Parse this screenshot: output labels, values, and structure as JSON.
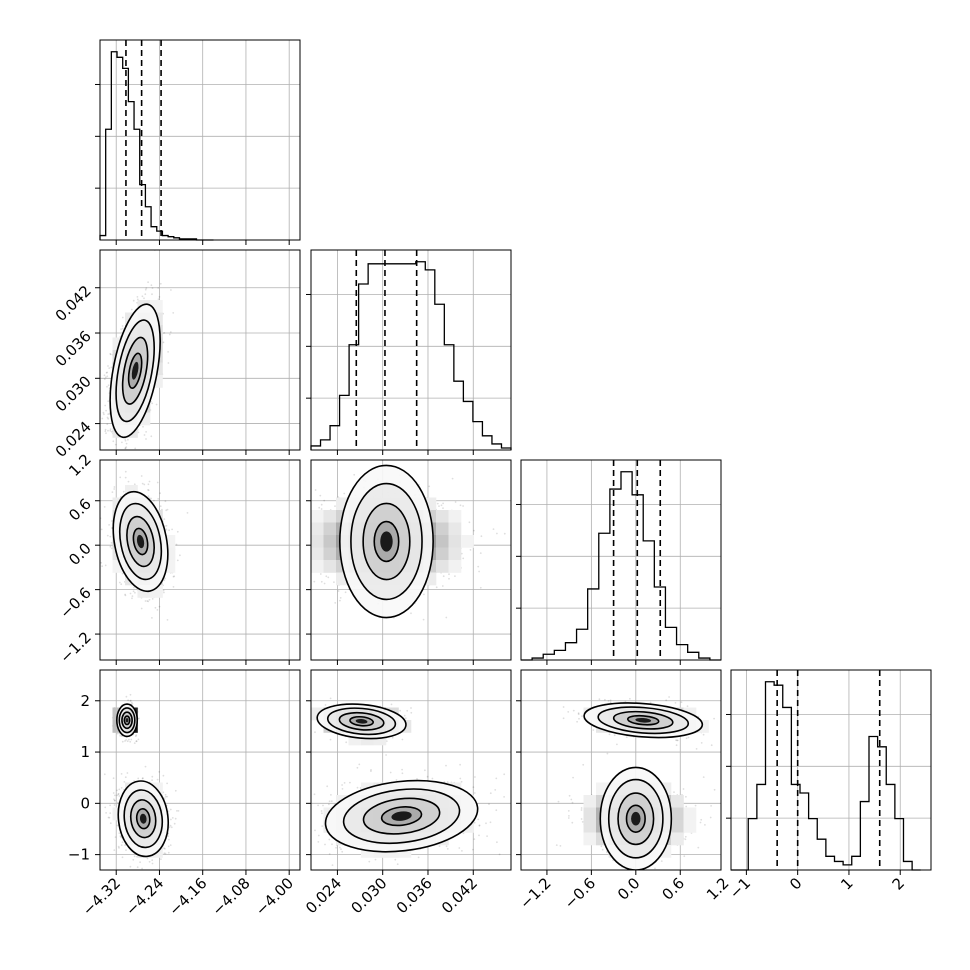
{
  "chart_data": {
    "type": "corner",
    "grid": true,
    "quantile_line_style": "dashed",
    "parameters": [
      {
        "range": [
          -4.35,
          -3.98
        ],
        "ticks": [
          -4.32,
          -4.24,
          -4.16,
          -4.08,
          -4.0
        ],
        "tick_labels": [
          "−4.32",
          "−4.24",
          "−4.16",
          "−4.08",
          "−4.00"
        ],
        "quantiles": [
          -4.302,
          -4.273,
          -4.237
        ],
        "hist_range": [
          -4.35,
          -4.14
        ],
        "hist_counts": [
          4,
          100,
          170,
          165,
          155,
          125,
          100,
          50,
          30,
          12,
          8,
          4,
          3,
          2,
          1,
          1,
          1,
          0,
          0,
          0
        ]
      },
      {
        "range": [
          0.0205,
          0.047
        ],
        "ticks": [
          0.024,
          0.03,
          0.036,
          0.042
        ],
        "tick_labels": [
          "0.024",
          "0.030",
          "0.036",
          "0.042"
        ],
        "quantiles": [
          0.0265,
          0.0303,
          0.0345
        ],
        "hist_range": [
          0.0205,
          0.047
        ],
        "hist_counts": [
          2,
          5,
          12,
          27,
          52,
          82,
          92,
          92,
          92,
          92,
          92,
          93,
          89,
          72,
          52,
          34,
          24,
          14,
          7,
          3,
          1
        ]
      },
      {
        "range": [
          -1.55,
          1.15
        ],
        "ticks": [
          -1.2,
          -0.6,
          0.0,
          0.6,
          1.2
        ],
        "tick_labels": [
          "−1.2",
          "−0.6",
          "0.0",
          "0.6",
          "1.2"
        ],
        "quantiles": [
          -0.3,
          0.02,
          0.33
        ],
        "hist_range": [
          -1.55,
          1.15
        ],
        "hist_counts": [
          0,
          1,
          3,
          5,
          9,
          16,
          37,
          66,
          89,
          98,
          86,
          62,
          38,
          17,
          8,
          4,
          1,
          0
        ]
      },
      {
        "range": [
          -1.3,
          2.6
        ],
        "ticks": [
          -1,
          0,
          1,
          2
        ],
        "tick_labels": [
          "−1",
          "0",
          "1",
          "2"
        ],
        "quantiles": [
          -0.4,
          0.0,
          1.6
        ],
        "hist_range": [
          -1.3,
          2.4
        ],
        "hist_counts": [
          0,
          0,
          30,
          50,
          110,
          108,
          95,
          50,
          45,
          30,
          18,
          8,
          5,
          3,
          8,
          40,
          78,
          72,
          50,
          30,
          5,
          0
        ]
      }
    ],
    "pair_clusters": [
      {
        "row": 1,
        "col": 0,
        "modes": [
          {
            "mean": [
              -4.285,
              0.031
            ],
            "sd": [
              0.022,
              0.0042
            ],
            "rho": 0.45,
            "weight": 1
          }
        ]
      },
      {
        "row": 2,
        "col": 0,
        "modes": [
          {
            "mean": [
              -4.275,
              0.05
            ],
            "sd": [
              0.024,
              0.32
            ],
            "rho": -0.25,
            "weight": 1
          }
        ]
      },
      {
        "row": 2,
        "col": 1,
        "modes": [
          {
            "mean": [
              0.0305,
              0.05
            ],
            "sd": [
              0.0048,
              0.3
            ],
            "rho": 0.0,
            "weight": 1
          }
        ]
      },
      {
        "row": 3,
        "col": 0,
        "modes": [
          {
            "mean": [
              -4.3,
              1.62
            ],
            "sd": [
              0.009,
              0.15
            ],
            "rho": 0.0,
            "weight": 0.3
          },
          {
            "mean": [
              -4.27,
              -0.3
            ],
            "sd": [
              0.022,
              0.35
            ],
            "rho": -0.1,
            "weight": 0.7
          }
        ]
      },
      {
        "row": 3,
        "col": 1,
        "modes": [
          {
            "mean": [
              0.0272,
              1.6
            ],
            "sd": [
              0.0028,
              0.16
            ],
            "rho": -0.2,
            "weight": 0.3
          },
          {
            "mean": [
              0.0325,
              -0.25
            ],
            "sd": [
              0.0048,
              0.33
            ],
            "rho": 0.2,
            "weight": 0.7
          }
        ]
      },
      {
        "row": 3,
        "col": 2,
        "modes": [
          {
            "mean": [
              0.1,
              1.62
            ],
            "sd": [
              0.38,
              0.16
            ],
            "rho": -0.25,
            "weight": 0.3
          },
          {
            "mean": [
              0.0,
              -0.3
            ],
            "sd": [
              0.33,
              0.33
            ],
            "rho": 0.0,
            "weight": 0.7
          }
        ]
      }
    ]
  }
}
